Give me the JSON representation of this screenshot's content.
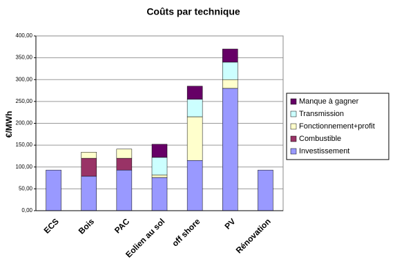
{
  "chart_data": {
    "type": "stacked-bar",
    "title": "Coûts par technique",
    "y_label": "€/MWh",
    "categories": [
      "ECS",
      "Bois",
      "PAC",
      "Eolien au sol",
      "off shore",
      "PV",
      "Rénovation"
    ],
    "series": [
      {
        "name": "Investissement",
        "color": "#9999ff",
        "values": [
          93,
          79,
          93,
          76,
          115,
          280,
          93
        ]
      },
      {
        "name": "Combustible",
        "color": "#993366",
        "values": [
          0,
          41,
          27,
          0,
          0,
          0,
          0
        ]
      },
      {
        "name": "Fonctionnement+profit",
        "color": "#ffffcc",
        "values": [
          0,
          14,
          21,
          6,
          100,
          20,
          0
        ]
      },
      {
        "name": "Transmission",
        "color": "#ccffff",
        "values": [
          0,
          0,
          0,
          40,
          40,
          40,
          0
        ]
      },
      {
        "name": "Manque à gagner",
        "color": "#660066",
        "values": [
          0,
          0,
          0,
          30,
          30,
          30,
          0
        ]
      }
    ],
    "ylim": [
      0,
      400
    ],
    "yticks": [
      {
        "value": 0,
        "label": "0,00"
      },
      {
        "value": 50,
        "label": "50,00"
      },
      {
        "value": 100,
        "label": "100,00"
      },
      {
        "value": 150,
        "label": "150,00"
      },
      {
        "value": 200,
        "label": "200,00"
      },
      {
        "value": 250,
        "label": "250,00"
      },
      {
        "value": 300,
        "label": "300,00"
      },
      {
        "value": 350,
        "label": "350,00"
      },
      {
        "value": 400,
        "label": "400,00"
      }
    ],
    "grid": true,
    "legend": "right"
  }
}
